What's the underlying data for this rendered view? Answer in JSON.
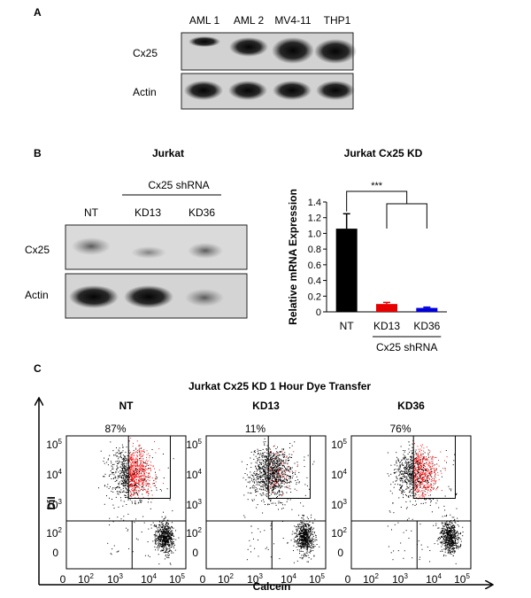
{
  "panel_a": {
    "label": "A",
    "lanes": [
      "AML 1",
      "AML 2",
      "MV4-11",
      "THP1"
    ],
    "rows": [
      "Cx25",
      "Actin"
    ]
  },
  "panel_b": {
    "label": "B",
    "blot_title": "Jurkat",
    "shrna_label": "Cx25 shRNA",
    "lanes": [
      "NT",
      "KD13",
      "KD36"
    ],
    "rows": [
      "Cx25",
      "Actin"
    ],
    "chart_title": "Jurkat Cx25 KD",
    "significance": "***",
    "group_label": "Cx25 shRNA"
  },
  "chart_data": [
    {
      "type": "bar",
      "title": "Jurkat Cx25 KD",
      "ylabel": "Relative mRNA Expression",
      "xlabel": "Cx25 shRNA",
      "categories": [
        "NT",
        "KD13",
        "KD36"
      ],
      "values": [
        1.06,
        0.1,
        0.05
      ],
      "errors": [
        0.19,
        0.02,
        0.01
      ],
      "colors": [
        "#000000",
        "#e60000",
        "#0000dd"
      ],
      "ylim": [
        0,
        1.4
      ],
      "yticks": [
        "0",
        "0.2",
        "0.4",
        "0.6",
        "0.8",
        "1.0",
        "1.2",
        "1.4"
      ],
      "annotation": "***"
    },
    {
      "type": "scatter",
      "title": "Jurkat Cx25 KD 1 Hour Dye Transfer",
      "xlabel": "Calcein",
      "ylabel": "DiI",
      "log_ticks": [
        "0",
        "10^2",
        "10^3",
        "10^4",
        "10^5"
      ],
      "panels": [
        {
          "name": "NT",
          "percent": "87%",
          "gated_fraction": 0.87
        },
        {
          "name": "KD13",
          "percent": "11%",
          "gated_fraction": 0.11
        },
        {
          "name": "KD36",
          "percent": "76%",
          "gated_fraction": 0.76
        }
      ]
    }
  ],
  "panel_c": {
    "label": "C",
    "title": "Jurkat Cx25 KD 1 Hour Dye Transfer",
    "xaxis": "Calcein",
    "yaxis": "DiI"
  }
}
